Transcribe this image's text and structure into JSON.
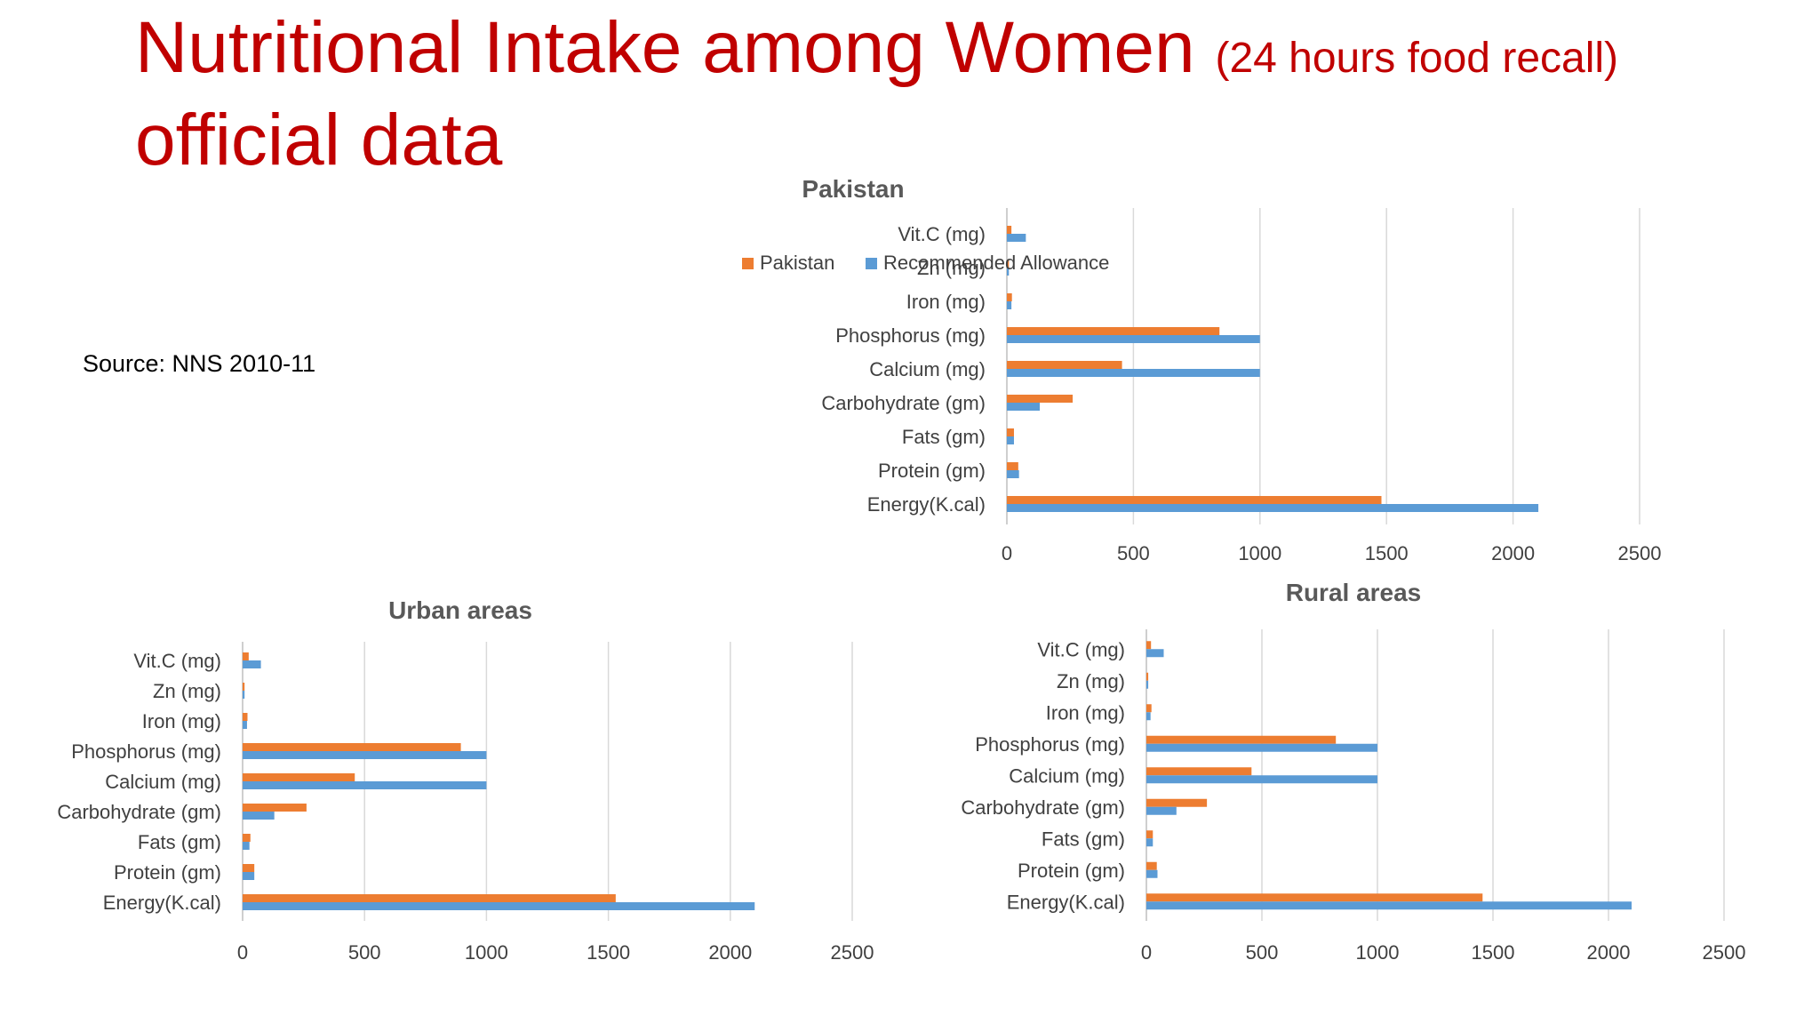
{
  "slide": {
    "title_main": "Nutritional Intake among Women",
    "title_paren": "(24 hours food recall)",
    "title_line2": "official data",
    "source": "Source: NNS 2010-11"
  },
  "colors": {
    "title": "#c00000",
    "series_actual": "#ed7d31",
    "series_recommended": "#5b9bd5",
    "grid": "#d9d9d9"
  },
  "chart_data": [
    {
      "type": "bar",
      "orientation": "horizontal",
      "title": "Pakistan",
      "categories": [
        "Energy(K.cal)",
        "Protein (gm)",
        "Fats (gm)",
        "Carbohydrate (gm)",
        "Calcium (mg)",
        "Phosphorus (mg)",
        "Iron (mg)",
        "Zn (mg)",
        "Vit.C (mg)"
      ],
      "series": [
        {
          "name": "Pakistan",
          "color": "#ed7d31",
          "values": [
            1480,
            45,
            28,
            260,
            455,
            840,
            20,
            8,
            18
          ]
        },
        {
          "name": "Recommended Allowance",
          "color": "#5b9bd5",
          "values": [
            2100,
            48,
            28,
            130,
            1000,
            1000,
            18,
            8,
            75
          ]
        }
      ],
      "xlim": [
        0,
        2500
      ],
      "ticks": [
        "0",
        "500",
        "1000",
        "1500",
        "2000",
        "2500"
      ],
      "legend": "top-right",
      "grid": true
    },
    {
      "type": "bar",
      "orientation": "horizontal",
      "title": "Urban areas",
      "categories": [
        "Energy(K.cal)",
        "Protein (gm)",
        "Fats (gm)",
        "Carbohydrate (gm)",
        "Calcium (mg)",
        "Phosphorus (mg)",
        "Iron (mg)",
        "Zn (mg)",
        "Vit.C (mg)"
      ],
      "series": [
        {
          "values": [
            1530,
            48,
            32,
            262,
            460,
            895,
            20,
            8,
            25
          ]
        },
        {
          "values": [
            2100,
            48,
            28,
            130,
            1000,
            1000,
            18,
            8,
            75
          ]
        }
      ],
      "xlim": [
        0,
        2500
      ],
      "ticks": [
        "0",
        "500",
        "1000",
        "1500",
        "2000",
        "2500"
      ],
      "grid": true
    },
    {
      "type": "bar",
      "orientation": "horizontal",
      "title": "Rural areas",
      "categories": [
        "Energy(K.cal)",
        "Protein (gm)",
        "Fats (gm)",
        "Carbohydrate (gm)",
        "Calcium (mg)",
        "Phosphorus (mg)",
        "Iron (mg)",
        "Zn (mg)",
        "Vit.C (mg)"
      ],
      "series": [
        {
          "values": [
            1455,
            45,
            28,
            262,
            455,
            820,
            22,
            8,
            20
          ]
        },
        {
          "values": [
            2100,
            48,
            28,
            130,
            1000,
            1000,
            18,
            8,
            75
          ]
        }
      ],
      "xlim": [
        0,
        2500
      ],
      "ticks": [
        "0",
        "500",
        "1000",
        "1500",
        "2000",
        "2500"
      ],
      "grid": true
    }
  ]
}
